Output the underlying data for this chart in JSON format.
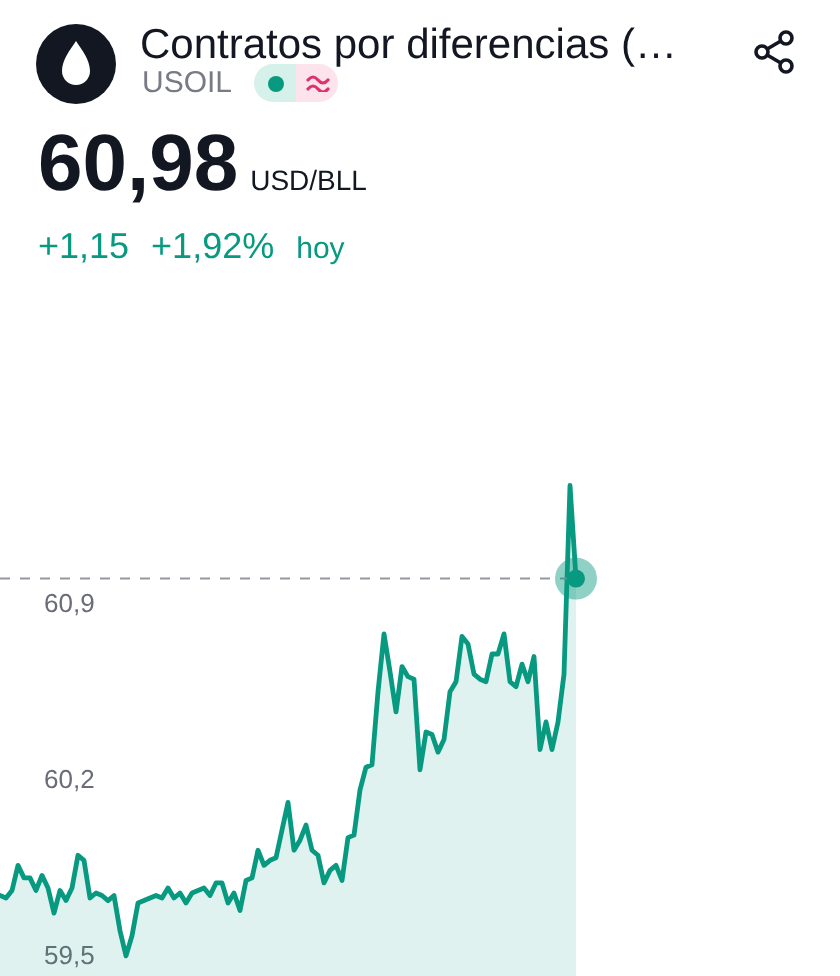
{
  "chart_data": {
    "type": "area",
    "title": "Contratos por diferencias (…",
    "subtitle": "USOIL",
    "annotations": [
      "60,98",
      "USD/BLL",
      "+1,15",
      "+1,92%",
      "hoy"
    ],
    "categories": [
      null,
      null,
      null,
      null,
      null,
      null,
      null,
      null,
      null,
      null,
      null,
      null,
      null,
      null,
      null,
      null,
      null,
      null,
      null,
      null,
      null,
      null,
      null,
      null,
      null,
      null,
      null,
      null,
      null,
      null,
      null,
      null,
      null,
      null,
      null,
      null,
      null,
      null,
      null,
      null,
      null,
      null,
      null,
      null,
      null,
      null,
      null,
      null,
      null,
      null,
      null,
      null,
      null,
      null,
      null,
      null,
      null,
      null,
      null,
      null,
      null,
      null,
      null,
      null,
      null,
      null,
      null,
      null,
      null,
      null,
      null,
      null,
      null,
      null,
      null,
      null,
      null,
      null,
      null,
      null,
      null,
      null,
      null,
      null,
      null,
      null,
      null,
      null,
      null,
      null,
      null,
      null,
      null,
      null,
      null,
      null,
      null,
      null,
      null,
      null,
      null,
      null,
      null,
      null,
      null,
      null,
      null,
      null,
      null,
      null,
      null,
      null,
      null,
      null,
      null,
      null,
      null,
      null,
      null,
      null,
      null,
      null,
      null,
      null,
      null,
      null,
      null,
      null,
      null,
      null,
      null,
      null,
      null,
      null,
      null,
      null,
      null,
      null,
      null,
      null,
      null
    ],
    "values": [
      59.72,
      59.71,
      59.74,
      59.84,
      59.79,
      59.79,
      59.74,
      59.8,
      59.75,
      59.65,
      59.74,
      59.7,
      59.75,
      59.88,
      59.86,
      59.71,
      59.73,
      59.72,
      59.7,
      59.72,
      59.58,
      59.48,
      59.56,
      59.69,
      59.7,
      59.71,
      59.72,
      59.71,
      59.75,
      59.71,
      59.73,
      59.69,
      59.73,
      59.74,
      59.75,
      59.72,
      59.77,
      59.77,
      59.69,
      59.73,
      59.66,
      59.78,
      59.79,
      59.9,
      59.84,
      59.86,
      59.87,
      59.98,
      60.09,
      59.9,
      59.94,
      60.0,
      59.9,
      59.88,
      59.77,
      59.82,
      59.84,
      59.78,
      59.95,
      59.96,
      60.14,
      60.23,
      60.24,
      60.53,
      60.76,
      60.61,
      60.45,
      60.63,
      60.59,
      60.58,
      60.22,
      60.37,
      60.36,
      60.29,
      60.34,
      60.53,
      60.57,
      60.75,
      60.72,
      60.6,
      60.58,
      60.57,
      60.68,
      60.68,
      60.76,
      60.57,
      60.55,
      60.64,
      60.57,
      60.67,
      60.3,
      60.41,
      60.3,
      60.41,
      60.6,
      61.35,
      60.98,
      null,
      null,
      null,
      null,
      null,
      null,
      null,
      null,
      null,
      null,
      null,
      null,
      null,
      null,
      null,
      null,
      null,
      null,
      null,
      null,
      null,
      null,
      null,
      null,
      null,
      null,
      null,
      null,
      null,
      null,
      null,
      null,
      null,
      null,
      null,
      null,
      null,
      null,
      null,
      null,
      null,
      null,
      null,
      null
    ],
    "color": "#089981",
    "ylim": [
      59.4,
      63.28
    ],
    "yticks": [
      {
        "value": 59.5,
        "label": "59,5"
      },
      {
        "value": 60.2,
        "label": "60,2"
      },
      {
        "value": 60.9,
        "label": "60,9"
      }
    ],
    "tick_labels": "y",
    "ref_lines": [
      {
        "axis": "y",
        "value": 60.98,
        "color": "#9598a1",
        "line_style": "dashed"
      }
    ]
  }
}
